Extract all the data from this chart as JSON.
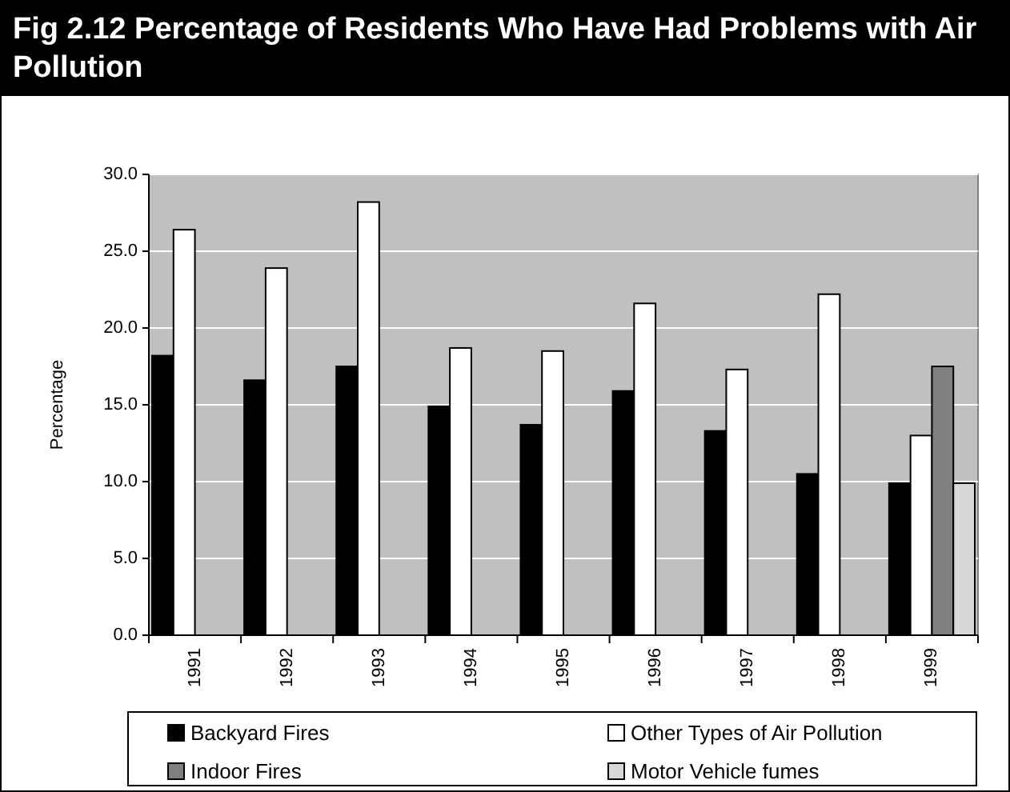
{
  "chart_data": {
    "type": "bar",
    "title": "Fig 2.12  Percentage of Residents Who Have Had Problems with Air Pollution",
    "ylabel": "Percentage",
    "categories": [
      "1991",
      "1992",
      "1993",
      "1994",
      "1995",
      "1996",
      "1997",
      "1998",
      "1999"
    ],
    "series": [
      {
        "name": "Backyard Fires",
        "color": "#000000",
        "values": [
          18.2,
          16.6,
          17.5,
          14.9,
          13.7,
          15.9,
          13.3,
          10.5,
          9.9
        ]
      },
      {
        "name": "Other Types of Air Pollution",
        "color": "#ffffff",
        "values": [
          26.4,
          23.9,
          28.2,
          18.7,
          18.5,
          21.6,
          17.3,
          22.2,
          13.0
        ]
      },
      {
        "name": "Indoor Fires",
        "color": "#808080",
        "values": [
          null,
          null,
          null,
          null,
          null,
          null,
          null,
          null,
          17.5
        ]
      },
      {
        "name": "Motor Vehicle fumes",
        "color": "#d8d8d8",
        "values": [
          null,
          null,
          null,
          null,
          null,
          null,
          null,
          null,
          9.9
        ]
      }
    ],
    "ylim": [
      0,
      30
    ],
    "yticks": [
      {
        "value": 0,
        "label": "0.0"
      },
      {
        "value": 5,
        "label": "5.0"
      },
      {
        "value": 10,
        "label": "10.0"
      },
      {
        "value": 15,
        "label": "15.0"
      },
      {
        "value": 20,
        "label": "20.0"
      },
      {
        "value": 25,
        "label": "25.0"
      },
      {
        "value": 30,
        "label": "30.0"
      }
    ],
    "grid": "y",
    "legend": "bottom"
  }
}
